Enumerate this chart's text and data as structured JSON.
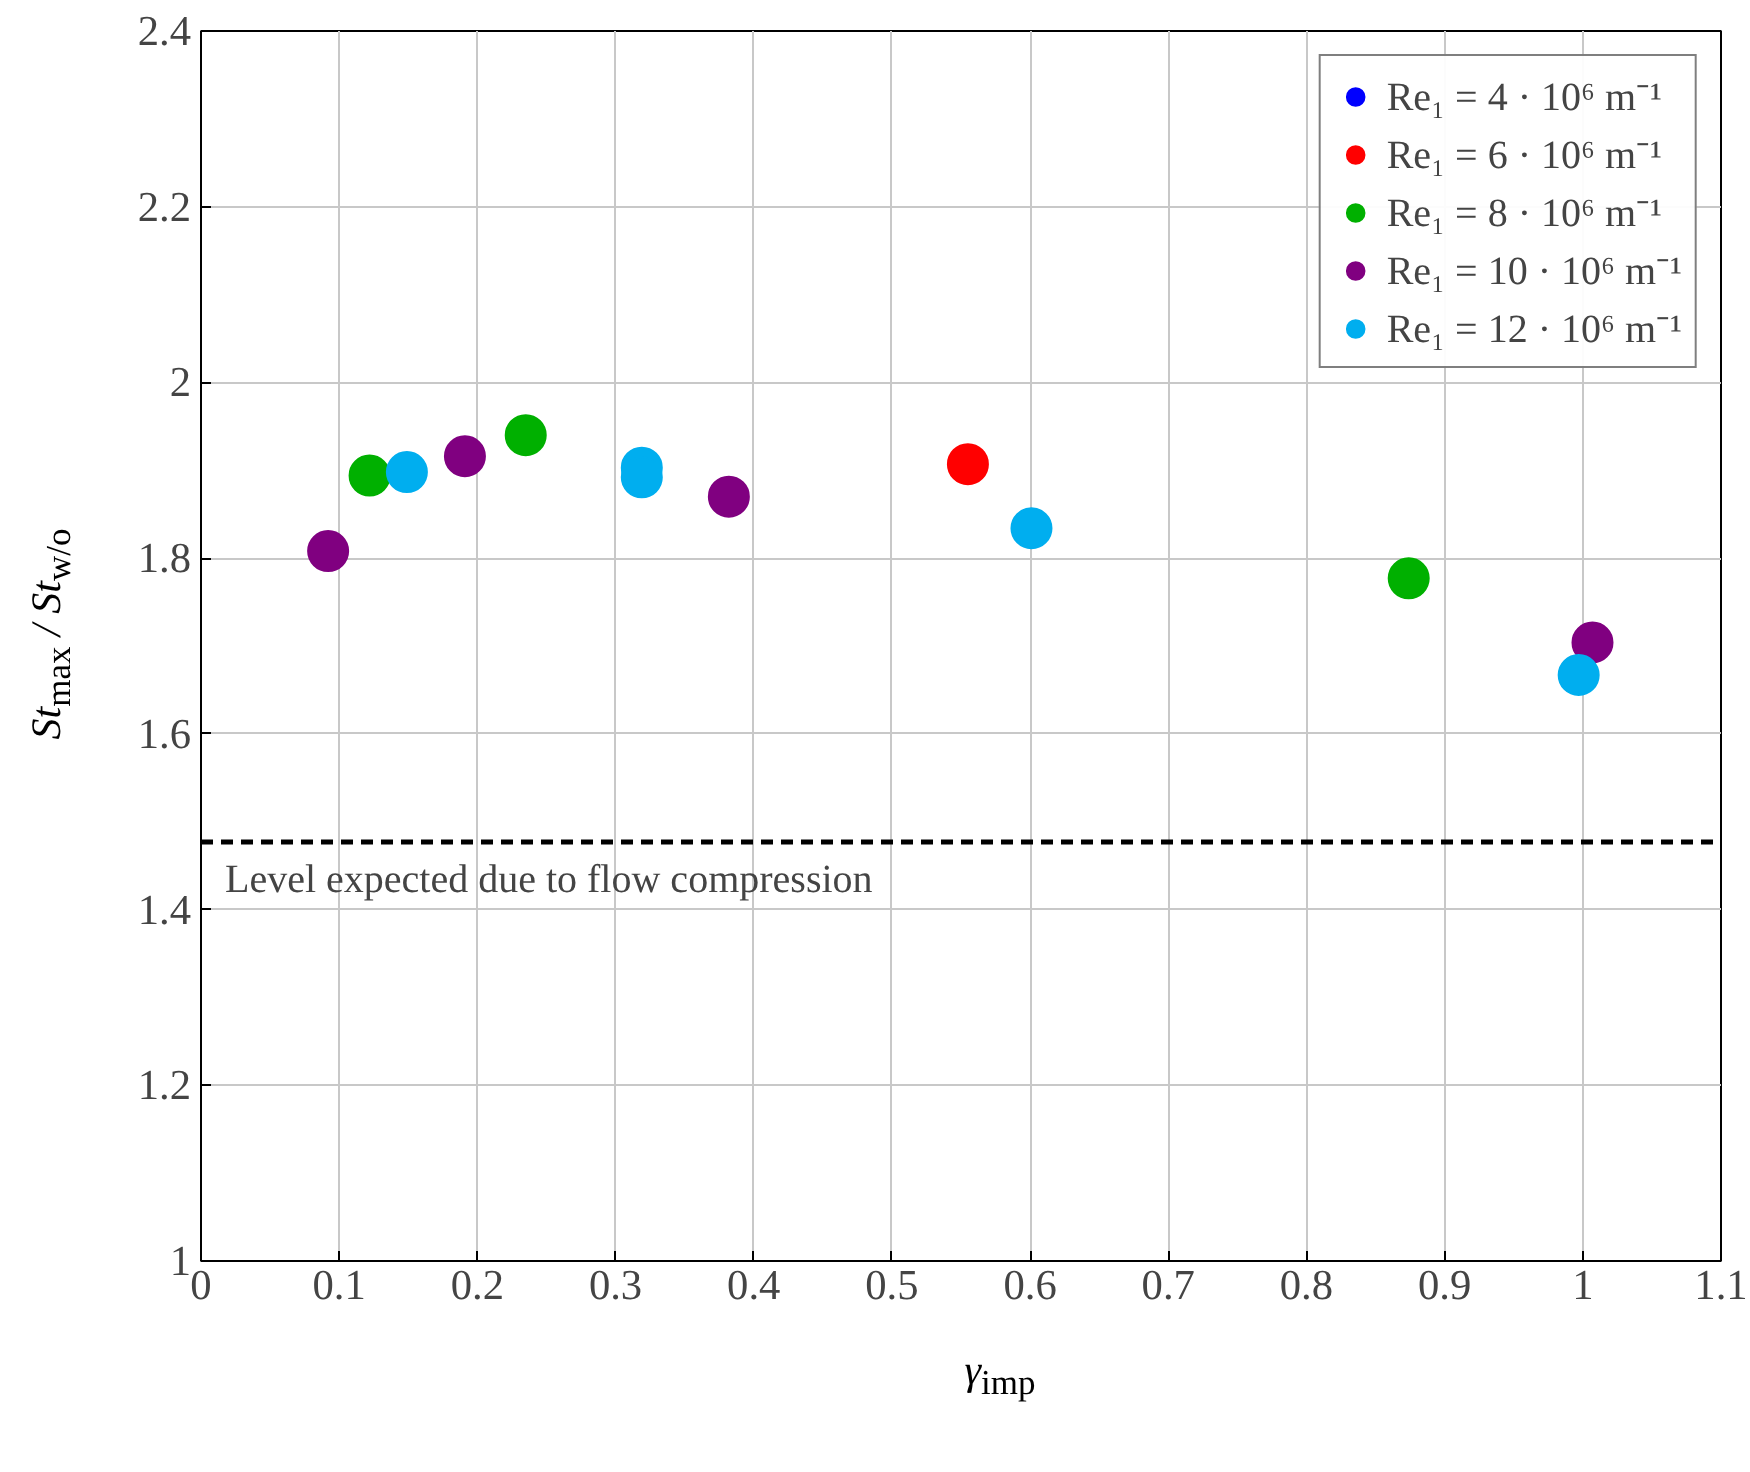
{
  "chart_data": {
    "type": "scatter",
    "xlabel": "γ$_{imp}$",
    "ylabel": "St$_{max}$ / St$_{w/o}$",
    "xlim": [
      0,
      1.1
    ],
    "ylim": [
      1,
      2.4
    ],
    "xticks": [
      0,
      0.1,
      0.2,
      0.3,
      0.4,
      0.5,
      0.6,
      0.7,
      0.8,
      0.9,
      1,
      1.1
    ],
    "yticks": [
      1,
      1.2,
      1.4,
      1.6,
      1.8,
      2,
      2.2,
      2.4
    ],
    "grid": true,
    "legend": "top right",
    "marker": "circle",
    "ref_lines": [
      {
        "axis": "y",
        "value": 1.477,
        "label": "Level expected due to flow compression",
        "color": "#000000",
        "line_style": "dashed"
      }
    ],
    "series": [
      {
        "name": "Re₁ = 4 · 10⁶ m⁻¹",
        "color": "#0000ff"
      },
      {
        "name": "Re₁ = 6 · 10⁶ m⁻¹",
        "color": "#ff0000",
        "x": [
          0.555
        ],
        "values": [
          1.907
        ]
      },
      {
        "name": "Re₁ = 8 · 10⁶ m⁻¹",
        "color": "#00b000",
        "x": [
          0.122,
          0.235,
          0.874
        ],
        "values": [
          1.894,
          1.94,
          1.777
        ]
      },
      {
        "name": "Re₁ = 10 · 10⁶ m⁻¹",
        "color": "#800080",
        "x": [
          0.092,
          0.191,
          0.382,
          1.007
        ],
        "values": [
          1.808,
          1.916,
          1.87,
          1.704
        ]
      },
      {
        "name": "Re₁ = 12 · 10⁶ m⁻¹",
        "color": "#00aeef",
        "x": [
          0.149,
          0.319,
          0.319,
          0.601,
          0.997
        ],
        "values": [
          1.898,
          1.903,
          1.892,
          1.834,
          1.667
        ]
      }
    ]
  }
}
